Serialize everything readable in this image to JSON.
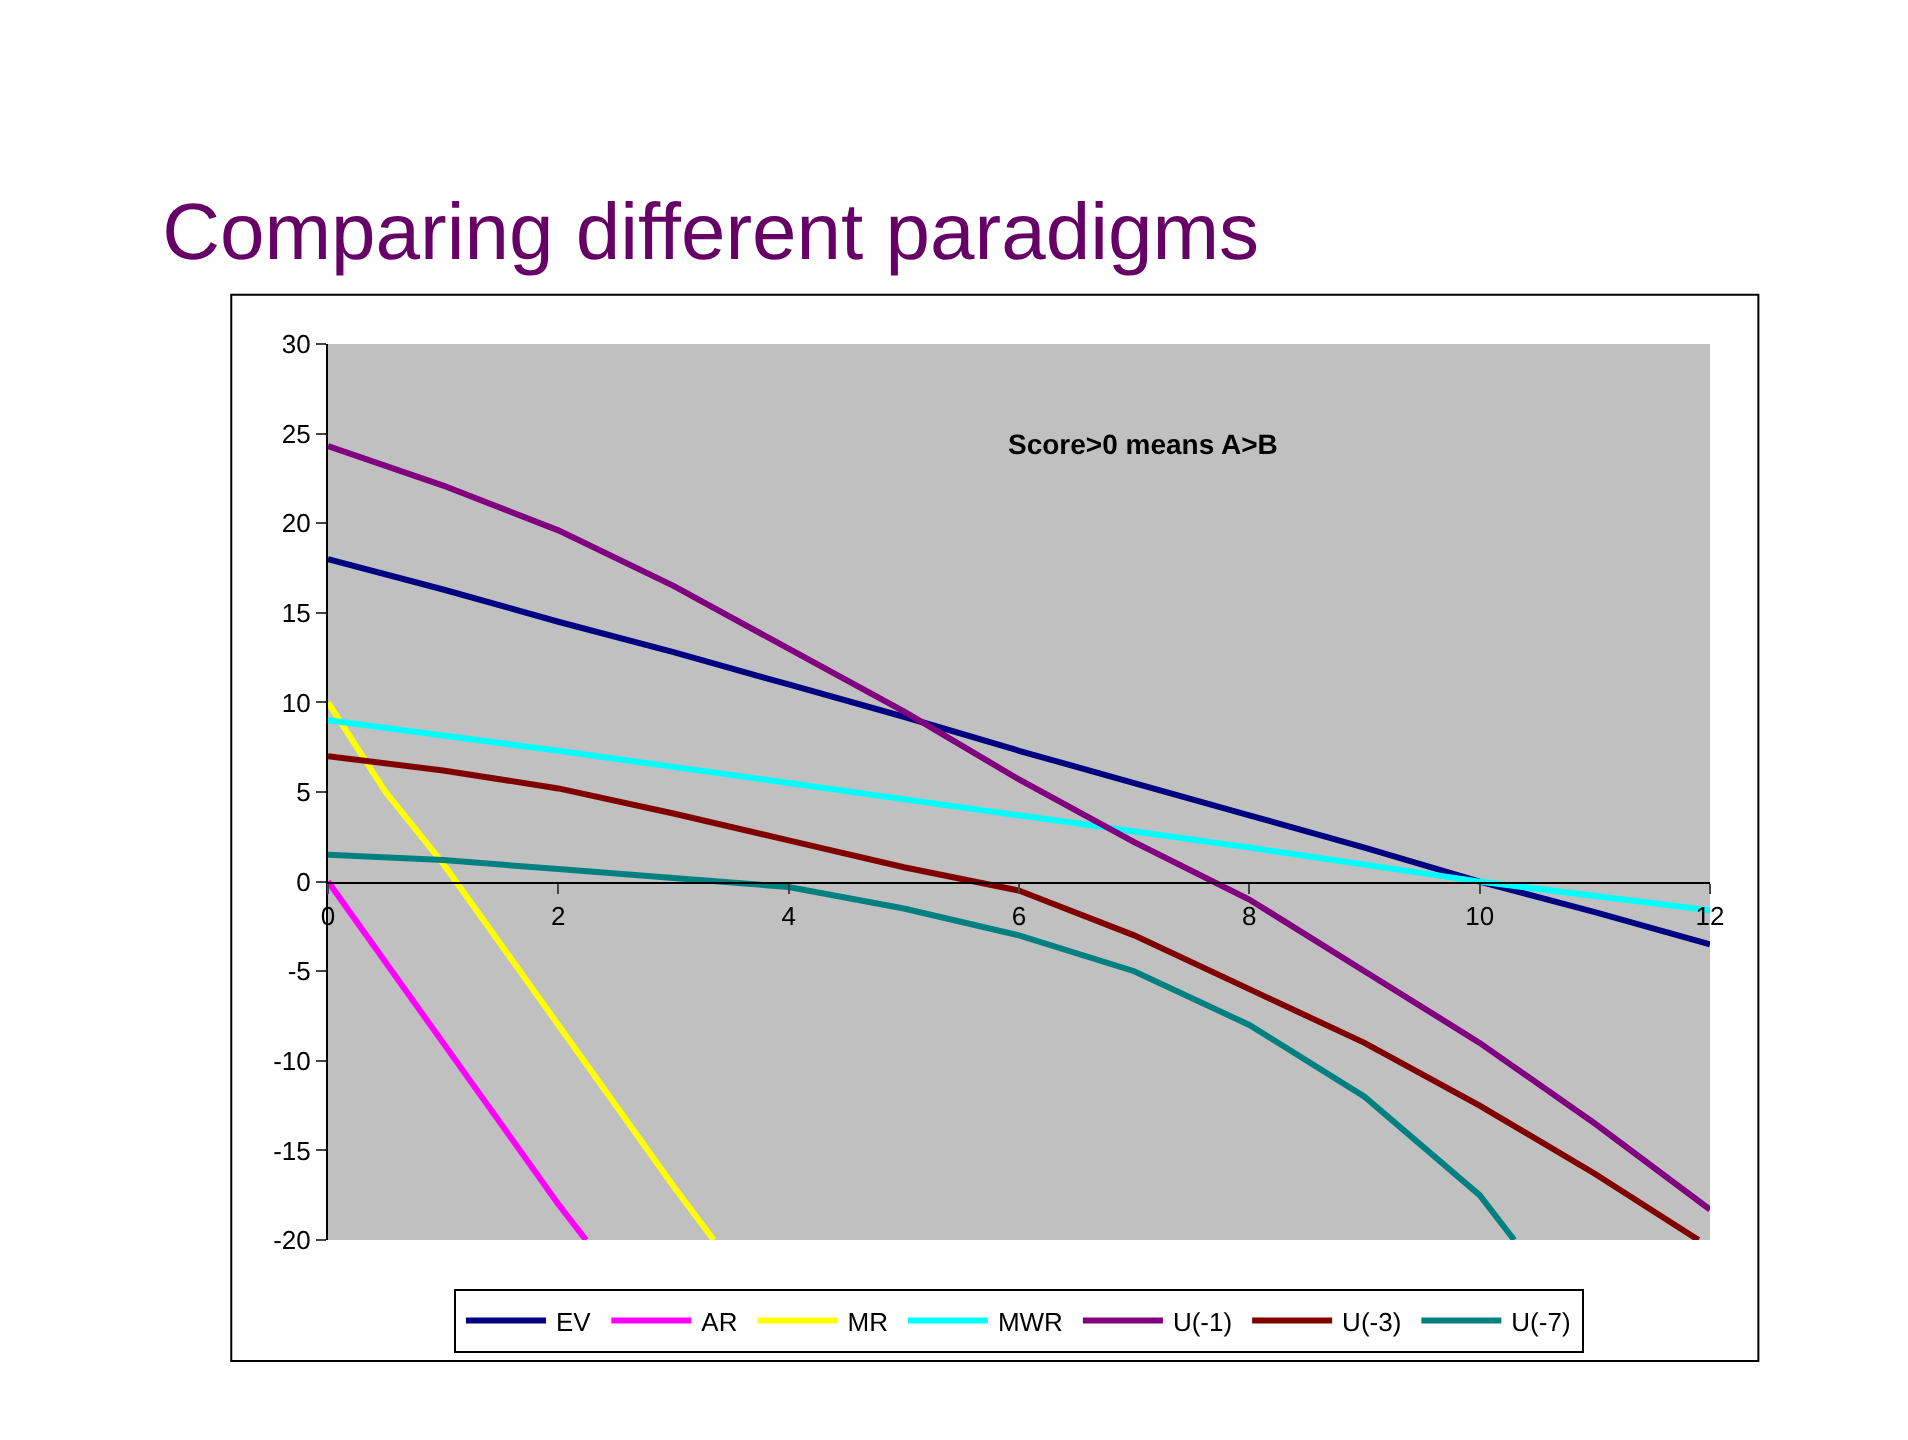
{
  "chart_data": {
    "type": "line",
    "title": "Comparing different paradigms",
    "annotations": [
      "Score>0 means A>B"
    ],
    "xlim": [
      0,
      12
    ],
    "xticks": [
      0,
      2,
      4,
      6,
      8,
      10,
      12
    ],
    "ylim": [
      -20,
      30
    ],
    "yticks": [
      -20,
      -15,
      -10,
      -5,
      0,
      5,
      10,
      15,
      20,
      25,
      30
    ],
    "grid": false,
    "legend": "bottom",
    "marker": "none",
    "line_style": "solid",
    "series": [
      {
        "name": "EV",
        "color": "#000080",
        "x": [
          0,
          1,
          2,
          3,
          4,
          5,
          6,
          7,
          8,
          9,
          10,
          11,
          12
        ],
        "values": [
          18,
          16.3,
          14.5,
          12.8,
          11,
          9.2,
          7.3,
          5.5,
          3.7,
          1.9,
          0,
          -1.7,
          -3.5
        ]
      },
      {
        "name": "AR",
        "color": "#ff00ff",
        "x": [
          0,
          0.5,
          1,
          1.5,
          2,
          2.24
        ],
        "values": [
          0,
          -4.5,
          -9,
          -13.5,
          -18,
          -20
        ]
      },
      {
        "name": "MR",
        "color": "#ffff00",
        "x": [
          0,
          0.5,
          1,
          1.5,
          2,
          2.5,
          3,
          3.35
        ],
        "values": [
          10,
          5,
          1,
          -3.5,
          -8,
          -12.5,
          -17,
          -20
        ]
      },
      {
        "name": "MWR",
        "color": "#00ffff",
        "x": [
          0,
          2,
          4,
          6,
          8,
          10,
          12
        ],
        "values": [
          9,
          7.3,
          5.5,
          3.7,
          1.9,
          0,
          -1.6
        ]
      },
      {
        "name": "U(-1)",
        "color": "#800080",
        "x": [
          0,
          1,
          2,
          3,
          4,
          5,
          6,
          7,
          8,
          9,
          10,
          11,
          12
        ],
        "values": [
          24.3,
          22.1,
          19.6,
          16.5,
          13,
          9.5,
          5.7,
          2.2,
          -1,
          -5,
          -9,
          -13.5,
          -18.3
        ]
      },
      {
        "name": "U(-3)",
        "color": "#800000",
        "x": [
          0,
          1,
          2,
          3,
          4,
          5,
          6,
          7,
          8,
          9,
          10,
          11,
          11.9
        ],
        "values": [
          7,
          6.2,
          5.2,
          3.8,
          2.3,
          0.8,
          -0.5,
          -3,
          -6,
          -9,
          -12.5,
          -16.3,
          -20
        ]
      },
      {
        "name": "U(-7)",
        "color": "#008080",
        "x": [
          0,
          1,
          2,
          3,
          4,
          5,
          6,
          7,
          8,
          9,
          10,
          10.3
        ],
        "values": [
          1.5,
          1.2,
          0.7,
          0.2,
          -0.3,
          -1.5,
          -3,
          -5,
          -8,
          -12,
          -17.5,
          -20
        ]
      }
    ]
  }
}
